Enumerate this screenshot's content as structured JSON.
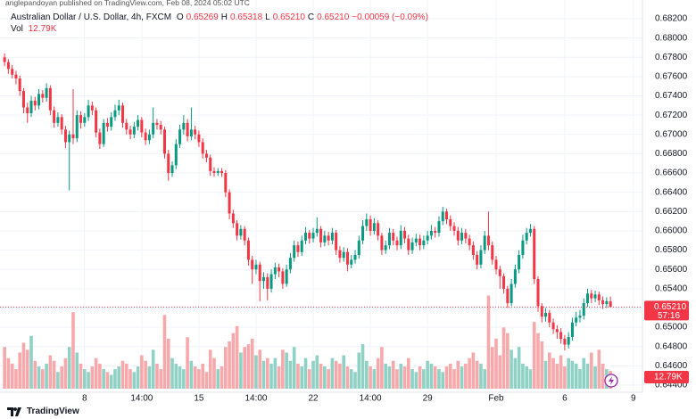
{
  "chart_data": {
    "type": "candlestick",
    "publisher": "anglepandoyan published on TradingView.com, Feb 08, 2024 05:02 UTC",
    "title": "Australian Dollar / U.S. Dollar, 4h, FXCM",
    "legend": [
      {
        "key": "O",
        "value": "0.65269"
      },
      {
        "key": "H",
        "value": "0.65318"
      },
      {
        "key": "L",
        "value": "0.65210"
      },
      {
        "key": "C",
        "value": "0.65210"
      }
    ],
    "change": "−0.00059 (−0.09%)",
    "last_price": {
      "value": 0.6521,
      "label": "0.65210",
      "countdown": "57:16"
    },
    "brand": "TradingView",
    "up_color": "#089981",
    "down_color": "#f23645",
    "up_volume_color": "#8fd1c5",
    "down_volume_color": "#f7a8ab",
    "grid": true,
    "xlim": [
      -1.2,
      167.4
    ],
    "xticks": [
      {
        "value": 21,
        "label": "8"
      },
      {
        "value": 36,
        "label": "14:00"
      },
      {
        "value": 51,
        "label": "15"
      },
      {
        "value": 66,
        "label": "14:00"
      },
      {
        "value": 81,
        "label": "22"
      },
      {
        "value": 96,
        "label": "14:00"
      },
      {
        "value": 111,
        "label": "29"
      },
      {
        "value": 129,
        "label": "Feb"
      },
      {
        "value": 147,
        "label": "6"
      },
      {
        "value": 165,
        "label": "9"
      }
    ],
    "ylim": [
      0.644,
      0.682
    ],
    "yticks": [
      {
        "value": 0.682,
        "label": "0.68200"
      },
      {
        "value": 0.68,
        "label": "0.68000"
      },
      {
        "value": 0.678,
        "label": "0.67800"
      },
      {
        "value": 0.676,
        "label": "0.67600"
      },
      {
        "value": 0.674,
        "label": "0.67400"
      },
      {
        "value": 0.672,
        "label": "0.67200"
      },
      {
        "value": 0.67,
        "label": "0.67000"
      },
      {
        "value": 0.668,
        "label": "0.66800"
      },
      {
        "value": 0.666,
        "label": "0.66600"
      },
      {
        "value": 0.664,
        "label": "0.66400"
      },
      {
        "value": 0.662,
        "label": "0.66200"
      },
      {
        "value": 0.66,
        "label": "0.66000"
      },
      {
        "value": 0.658,
        "label": "0.65800"
      },
      {
        "value": 0.656,
        "label": "0.65600"
      },
      {
        "value": 0.654,
        "label": "0.65400"
      },
      {
        "value": 0.652,
        "label": "0.65200"
      },
      {
        "value": 0.65,
        "label": "0.65000"
      },
      {
        "value": 0.648,
        "label": "0.64800"
      },
      {
        "value": 0.646,
        "label": "0.64600"
      },
      {
        "value": 0.644,
        "label": "0.64400"
      }
    ],
    "candles": [
      [
        0.678,
        0.6784,
        0.6771,
        0.6775
      ],
      [
        0.6775,
        0.6778,
        0.6763,
        0.6768
      ],
      [
        0.6768,
        0.6772,
        0.6758,
        0.6762
      ],
      [
        0.6762,
        0.6766,
        0.6752,
        0.6758
      ],
      [
        0.6758,
        0.6761,
        0.674,
        0.6745
      ],
      [
        0.6745,
        0.6748,
        0.6722,
        0.6728
      ],
      [
        0.6728,
        0.6733,
        0.6712,
        0.6722
      ],
      [
        0.6722,
        0.674,
        0.6718,
        0.6735
      ],
      [
        0.6735,
        0.6739,
        0.6725,
        0.673
      ],
      [
        0.673,
        0.6747,
        0.6726,
        0.6742
      ],
      [
        0.6742,
        0.6746,
        0.6733,
        0.6738
      ],
      [
        0.6738,
        0.6753,
        0.6734,
        0.6748
      ],
      [
        0.6748,
        0.6751,
        0.672,
        0.6725
      ],
      [
        0.6725,
        0.6729,
        0.6707,
        0.6712
      ],
      [
        0.6712,
        0.6723,
        0.6708,
        0.6718
      ],
      [
        0.6718,
        0.6721,
        0.67,
        0.6705
      ],
      [
        0.6705,
        0.6709,
        0.6686,
        0.6692
      ],
      [
        0.6692,
        0.6704,
        0.6642,
        0.67
      ],
      [
        0.67,
        0.6747,
        0.669,
        0.6696
      ],
      [
        0.6696,
        0.6725,
        0.6692,
        0.672
      ],
      [
        0.672,
        0.6724,
        0.6706,
        0.6712
      ],
      [
        0.6712,
        0.6722,
        0.6708,
        0.6718
      ],
      [
        0.6718,
        0.6736,
        0.6714,
        0.673
      ],
      [
        0.673,
        0.6734,
        0.672,
        0.6725
      ],
      [
        0.6725,
        0.6728,
        0.6697,
        0.6702
      ],
      [
        0.6702,
        0.6706,
        0.6685,
        0.669
      ],
      [
        0.669,
        0.6716,
        0.6687,
        0.6712
      ],
      [
        0.6712,
        0.6717,
        0.6703,
        0.6708
      ],
      [
        0.6708,
        0.6723,
        0.6704,
        0.6718
      ],
      [
        0.6718,
        0.6731,
        0.6714,
        0.6725
      ],
      [
        0.6725,
        0.6736,
        0.672,
        0.673
      ],
      [
        0.673,
        0.6733,
        0.6707,
        0.6712
      ],
      [
        0.6712,
        0.6716,
        0.67,
        0.6705
      ],
      [
        0.6705,
        0.6709,
        0.6695,
        0.67
      ],
      [
        0.67,
        0.6713,
        0.6696,
        0.6708
      ],
      [
        0.6708,
        0.672,
        0.6704,
        0.6715
      ],
      [
        0.6715,
        0.6718,
        0.6697,
        0.6702
      ],
      [
        0.6702,
        0.6706,
        0.6689,
        0.6694
      ],
      [
        0.6694,
        0.6705,
        0.669,
        0.67
      ],
      [
        0.67,
        0.6728,
        0.6696,
        0.6712
      ],
      [
        0.6712,
        0.6716,
        0.6705,
        0.671
      ],
      [
        0.671,
        0.6714,
        0.67,
        0.6705
      ],
      [
        0.6705,
        0.6708,
        0.6675,
        0.668
      ],
      [
        0.668,
        0.6684,
        0.6652,
        0.666
      ],
      [
        0.666,
        0.6672,
        0.6656,
        0.6668
      ],
      [
        0.6668,
        0.6695,
        0.6664,
        0.669
      ],
      [
        0.669,
        0.671,
        0.6686,
        0.6705
      ],
      [
        0.6705,
        0.672,
        0.67,
        0.6712
      ],
      [
        0.6712,
        0.6716,
        0.6693,
        0.6698
      ],
      [
        0.6698,
        0.6728,
        0.6694,
        0.6705
      ],
      [
        0.6705,
        0.6709,
        0.6695,
        0.67
      ],
      [
        0.67,
        0.6704,
        0.6687,
        0.6692
      ],
      [
        0.6692,
        0.6696,
        0.6675,
        0.668
      ],
      [
        0.668,
        0.6684,
        0.6671,
        0.6676
      ],
      [
        0.6676,
        0.6679,
        0.6657,
        0.6662
      ],
      [
        0.6662,
        0.6666,
        0.6656,
        0.666
      ],
      [
        0.666,
        0.6665,
        0.6657,
        0.6662
      ],
      [
        0.6662,
        0.6665,
        0.6656,
        0.666
      ],
      [
        0.666,
        0.6663,
        0.6635,
        0.664
      ],
      [
        0.664,
        0.6643,
        0.6612,
        0.6618
      ],
      [
        0.6618,
        0.6622,
        0.6603,
        0.6608
      ],
      [
        0.6608,
        0.6611,
        0.659,
        0.6595
      ],
      [
        0.6595,
        0.6606,
        0.6591,
        0.6602
      ],
      [
        0.6602,
        0.6605,
        0.6585,
        0.659
      ],
      [
        0.659,
        0.6593,
        0.6564,
        0.657
      ],
      [
        0.657,
        0.6574,
        0.6545,
        0.656
      ],
      [
        0.656,
        0.657,
        0.6555,
        0.6565
      ],
      [
        0.6565,
        0.6568,
        0.6527,
        0.6548
      ],
      [
        0.6548,
        0.6557,
        0.654,
        0.6552
      ],
      [
        0.6552,
        0.6556,
        0.6528,
        0.654
      ],
      [
        0.654,
        0.656,
        0.6536,
        0.6555
      ],
      [
        0.6555,
        0.6567,
        0.655,
        0.6562
      ],
      [
        0.6562,
        0.6566,
        0.6552,
        0.6558
      ],
      [
        0.6558,
        0.6561,
        0.654,
        0.6545
      ],
      [
        0.6545,
        0.6565,
        0.6542,
        0.656
      ],
      [
        0.656,
        0.6577,
        0.6556,
        0.6572
      ],
      [
        0.6572,
        0.659,
        0.6568,
        0.6585
      ],
      [
        0.6585,
        0.6589,
        0.6573,
        0.6578
      ],
      [
        0.6578,
        0.6595,
        0.6574,
        0.659
      ],
      [
        0.659,
        0.6604,
        0.6586,
        0.6598
      ],
      [
        0.6598,
        0.6601,
        0.6587,
        0.6592
      ],
      [
        0.6592,
        0.6603,
        0.6588,
        0.6598
      ],
      [
        0.6598,
        0.6614,
        0.6594,
        0.6602
      ],
      [
        0.6602,
        0.6605,
        0.6583,
        0.6588
      ],
      [
        0.6588,
        0.66,
        0.6584,
        0.6595
      ],
      [
        0.6595,
        0.6599,
        0.6585,
        0.659
      ],
      [
        0.659,
        0.6603,
        0.6586,
        0.6598
      ],
      [
        0.6598,
        0.6601,
        0.6575,
        0.658
      ],
      [
        0.658,
        0.6584,
        0.6567,
        0.6572
      ],
      [
        0.6572,
        0.6583,
        0.6568,
        0.6578
      ],
      [
        0.6578,
        0.6582,
        0.6558,
        0.6565
      ],
      [
        0.6565,
        0.6575,
        0.6561,
        0.657
      ],
      [
        0.657,
        0.658,
        0.6566,
        0.6575
      ],
      [
        0.6575,
        0.6595,
        0.6571,
        0.659
      ],
      [
        0.659,
        0.6611,
        0.6586,
        0.6605
      ],
      [
        0.6605,
        0.6618,
        0.66,
        0.6612
      ],
      [
        0.6612,
        0.6616,
        0.6595,
        0.66
      ],
      [
        0.66,
        0.6613,
        0.6596,
        0.6608
      ],
      [
        0.6608,
        0.6611,
        0.659,
        0.6595
      ],
      [
        0.6595,
        0.6598,
        0.6575,
        0.658
      ],
      [
        0.658,
        0.659,
        0.6576,
        0.6585
      ],
      [
        0.6585,
        0.6603,
        0.6581,
        0.6598
      ],
      [
        0.6598,
        0.6602,
        0.6585,
        0.659
      ],
      [
        0.659,
        0.6594,
        0.658,
        0.6585
      ],
      [
        0.6585,
        0.6606,
        0.6581,
        0.66
      ],
      [
        0.66,
        0.6604,
        0.6587,
        0.6592
      ],
      [
        0.6592,
        0.6596,
        0.6575,
        0.658
      ],
      [
        0.658,
        0.6593,
        0.6576,
        0.6588
      ],
      [
        0.6588,
        0.6597,
        0.6584,
        0.6592
      ],
      [
        0.6592,
        0.6596,
        0.658,
        0.6585
      ],
      [
        0.6585,
        0.6595,
        0.6581,
        0.659
      ],
      [
        0.659,
        0.66,
        0.6586,
        0.6595
      ],
      [
        0.6595,
        0.6606,
        0.6591,
        0.66
      ],
      [
        0.66,
        0.6604,
        0.6593,
        0.6598
      ],
      [
        0.6598,
        0.6615,
        0.6594,
        0.661
      ],
      [
        0.661,
        0.6625,
        0.6606,
        0.662
      ],
      [
        0.662,
        0.6623,
        0.6607,
        0.6612
      ],
      [
        0.6612,
        0.6616,
        0.66,
        0.6605
      ],
      [
        0.6605,
        0.6609,
        0.6595,
        0.66
      ],
      [
        0.66,
        0.6604,
        0.6585,
        0.659
      ],
      [
        0.659,
        0.6603,
        0.6586,
        0.6598
      ],
      [
        0.6598,
        0.6602,
        0.6587,
        0.6592
      ],
      [
        0.6592,
        0.6596,
        0.658,
        0.6585
      ],
      [
        0.6585,
        0.6589,
        0.657,
        0.6575
      ],
      [
        0.6575,
        0.6579,
        0.656,
        0.6565
      ],
      [
        0.6565,
        0.6585,
        0.6561,
        0.658
      ],
      [
        0.658,
        0.66,
        0.6576,
        0.6595
      ],
      [
        0.6595,
        0.662,
        0.658,
        0.6585
      ],
      [
        0.6585,
        0.6589,
        0.6565,
        0.657
      ],
      [
        0.657,
        0.6574,
        0.6555,
        0.656
      ],
      [
        0.656,
        0.6564,
        0.654,
        0.6553
      ],
      [
        0.6553,
        0.6556,
        0.6535,
        0.654
      ],
      [
        0.654,
        0.6543,
        0.652,
        0.6525
      ],
      [
        0.6525,
        0.655,
        0.6522,
        0.6545
      ],
      [
        0.6545,
        0.6565,
        0.6541,
        0.656
      ],
      [
        0.656,
        0.658,
        0.6556,
        0.6575
      ],
      [
        0.6575,
        0.6596,
        0.6571,
        0.659
      ],
      [
        0.659,
        0.6603,
        0.6586,
        0.6598
      ],
      [
        0.6598,
        0.6607,
        0.6594,
        0.6602
      ],
      [
        0.6602,
        0.6605,
        0.6545,
        0.655
      ],
      [
        0.655,
        0.6553,
        0.6516,
        0.6522
      ],
      [
        0.6522,
        0.6525,
        0.6505,
        0.6511
      ],
      [
        0.6511,
        0.652,
        0.6506,
        0.6515
      ],
      [
        0.6515,
        0.6518,
        0.65,
        0.6505
      ],
      [
        0.6505,
        0.6509,
        0.6493,
        0.6498
      ],
      [
        0.6498,
        0.6502,
        0.6488,
        0.6495
      ],
      [
        0.6495,
        0.6499,
        0.6483,
        0.6488
      ],
      [
        0.6488,
        0.6492,
        0.6476,
        0.6482
      ],
      [
        0.6482,
        0.6495,
        0.6478,
        0.649
      ],
      [
        0.649,
        0.651,
        0.6486,
        0.6505
      ],
      [
        0.6505,
        0.6516,
        0.6501,
        0.651
      ],
      [
        0.651,
        0.6518,
        0.6505,
        0.6512
      ],
      [
        0.6512,
        0.653,
        0.6508,
        0.6525
      ],
      [
        0.6525,
        0.654,
        0.6521,
        0.6535
      ],
      [
        0.6535,
        0.6539,
        0.6525,
        0.653
      ],
      [
        0.653,
        0.6538,
        0.6526,
        0.6534
      ],
      [
        0.6534,
        0.6537,
        0.6523,
        0.6528
      ],
      [
        0.6528,
        0.6532,
        0.6519,
        0.6524
      ],
      [
        0.6524,
        0.6531,
        0.652,
        0.6527
      ],
      [
        0.65269,
        0.65318,
        0.6521,
        0.6521
      ]
    ],
    "volume": {
      "name": "Vol",
      "label": "12.79K",
      "lim": [
        0,
        100000
      ],
      "values": [
        30000,
        22000,
        18000,
        14000,
        26000,
        33000,
        28000,
        38000,
        20000,
        16000,
        14000,
        18000,
        24000,
        20000,
        12000,
        16000,
        22000,
        30000,
        55000,
        26000,
        18000,
        14000,
        12000,
        16000,
        22000,
        18000,
        14000,
        12000,
        10000,
        14000,
        16000,
        20000,
        18000,
        14000,
        12000,
        16000,
        24000,
        20000,
        16000,
        28000,
        18000,
        14000,
        53000,
        36000,
        22000,
        18000,
        16000,
        14000,
        37000,
        20000,
        16000,
        14000,
        18000,
        12000,
        28000,
        22000,
        14000,
        16000,
        30000,
        34000,
        40000,
        45000,
        26000,
        30000,
        32000,
        36000,
        24000,
        28000,
        20000,
        22000,
        18000,
        22000,
        16000,
        28000,
        26000,
        20000,
        30000,
        18000,
        16000,
        22000,
        14000,
        20000,
        24000,
        18000,
        16000,
        14000,
        22000,
        20000,
        18000,
        24000,
        16000,
        14000,
        12000,
        26000,
        32000,
        20000,
        16000,
        14000,
        22000,
        30000,
        18000,
        16000,
        20000,
        14000,
        18000,
        16000,
        22000,
        14000,
        12000,
        16000,
        14000,
        20000,
        18000,
        16000,
        14000,
        12000,
        16000,
        18000,
        14000,
        20000,
        16000,
        18000,
        22000,
        26000,
        20000,
        18000,
        14000,
        67000,
        30000,
        36000,
        24000,
        44000,
        40000,
        28000,
        22000,
        30000,
        18000,
        16000,
        14000,
        48000,
        40000,
        34000,
        20000,
        26000,
        22000,
        18000,
        24000,
        16000,
        22000,
        20000,
        18000,
        14000,
        22000,
        18000,
        26000,
        16000,
        28000,
        18000,
        14000,
        12790
      ]
    }
  }
}
